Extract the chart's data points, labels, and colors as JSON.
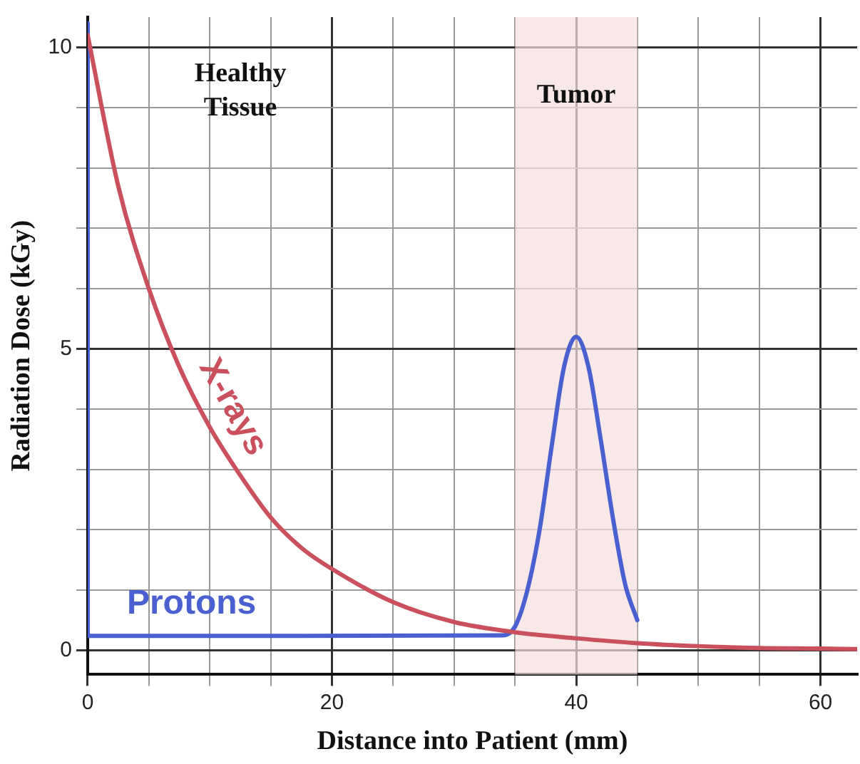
{
  "chart_data": {
    "type": "line",
    "xlabel": "Distance into Patient (mm)",
    "ylabel": "Radiation Dose (kGy)",
    "xlim": [
      0,
      63
    ],
    "ylim": [
      -0.4,
      10.5
    ],
    "xticks": [
      0,
      {
        "value": 5,
        "label": null
      },
      {
        "value": 10,
        "label": null
      },
      {
        "value": 15,
        "label": null
      },
      20,
      {
        "value": 25,
        "label": null
      },
      {
        "value": 30,
        "label": null
      },
      {
        "value": 35,
        "label": null
      },
      40,
      {
        "value": 45,
        "label": null
      },
      {
        "value": 50,
        "label": null
      },
      {
        "value": 55,
        "label": null
      },
      60
    ],
    "yticks": [
      0,
      {
        "value": 1,
        "label": null
      },
      {
        "value": 2,
        "label": null
      },
      {
        "value": 3,
        "label": null
      },
      {
        "value": 4,
        "label": null
      },
      5,
      {
        "value": 6,
        "label": null
      },
      {
        "value": 7,
        "label": null
      },
      {
        "value": 8,
        "label": null
      },
      {
        "value": 9,
        "label": null
      },
      10
    ],
    "series": [
      {
        "name": "X-rays",
        "color": "#c9505c",
        "x": [
          0,
          2.5,
          5,
          7.5,
          10,
          12.5,
          15,
          17.5,
          20,
          25,
          30,
          35,
          40,
          45,
          50,
          55,
          60,
          63
        ],
        "values": [
          10.2,
          7.7,
          6.0,
          4.7,
          3.7,
          2.9,
          2.2,
          1.7,
          1.35,
          0.8,
          0.47,
          0.3,
          0.2,
          0.12,
          0.07,
          0.04,
          0.03,
          0.02
        ]
      },
      {
        "name": "Protons",
        "color": "#4a5fd0",
        "x": [
          0,
          0,
          34,
          35,
          36,
          37,
          38,
          39,
          40,
          41,
          42,
          43,
          44,
          45
        ],
        "values": [
          10.4,
          0.24,
          0.25,
          0.4,
          1.0,
          2.0,
          3.4,
          4.7,
          5.2,
          4.7,
          3.5,
          2.2,
          1.1,
          0.5
        ]
      }
    ],
    "bands": [
      {
        "axis": "x",
        "from": 35,
        "to": 45,
        "label": "Tumor",
        "color": "#f7dede"
      }
    ],
    "annotations": [
      "Healthy Tissue"
    ],
    "grid": true,
    "legend": false,
    "marker": "none",
    "line_style": "solid"
  }
}
